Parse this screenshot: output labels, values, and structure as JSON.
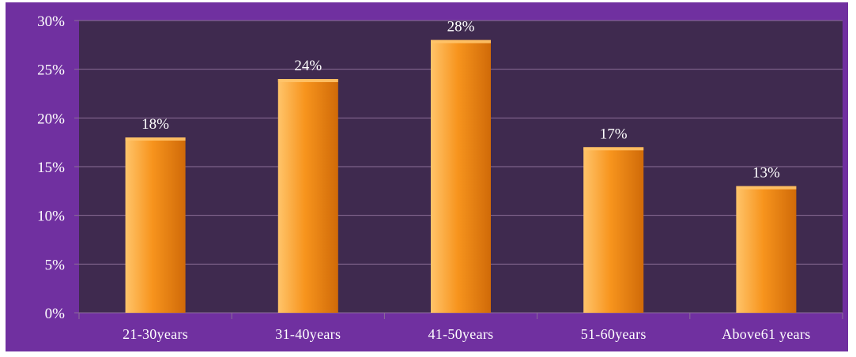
{
  "chart_data": {
    "type": "bar",
    "categories": [
      "21-30years",
      "31-40years",
      "41-50years",
      "51-60years",
      "Above61 years"
    ],
    "values": [
      18,
      24,
      28,
      17,
      13
    ],
    "data_labels": [
      "18%",
      "24%",
      "28%",
      "17%",
      "13%"
    ],
    "y_ticks": [
      "0%",
      "5%",
      "10%",
      "15%",
      "20%",
      "25%",
      "30%"
    ],
    "ylim": [
      0,
      30
    ],
    "y_tick_step": 5,
    "grid": true,
    "legend": "none",
    "title": "",
    "xlabel": "",
    "ylabel": ""
  },
  "colors": {
    "frame": "#7030a0",
    "plot_bg": "#3f2a4f",
    "grid": "#8b6e97",
    "bar_light": "#ffc46a",
    "bar_mid": "#f7941d",
    "bar_dark": "#d06a08",
    "text": "#ffffff"
  }
}
